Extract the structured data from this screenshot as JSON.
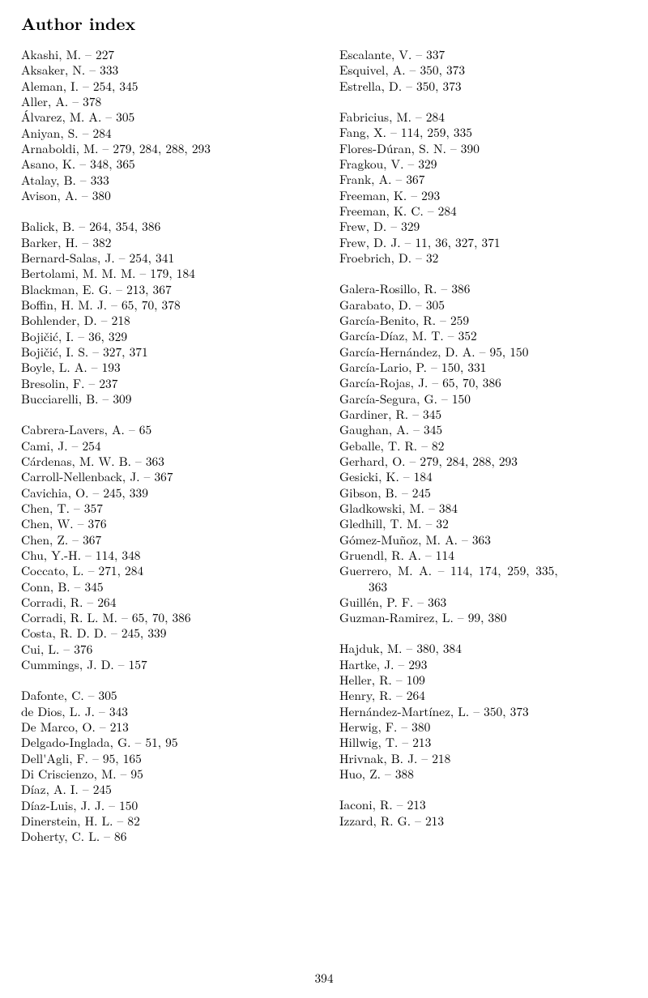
{
  "title": "Author index",
  "page_number": "394",
  "left_column": [
    {
      "type": "entry",
      "text": "Akashi, M. – 227"
    },
    {
      "type": "entry",
      "text": "Aksaker, N. – 333"
    },
    {
      "type": "entry",
      "text": "Aleman, I. – 254, 345"
    },
    {
      "type": "entry",
      "text": "Aller, A. – 378"
    },
    {
      "type": "entry",
      "text": "Álvarez, M. A. – 305"
    },
    {
      "type": "entry",
      "text": "Aniyan, S. – 284"
    },
    {
      "type": "entry",
      "text": "Arnaboldi, M. – 279, 284, 288, 293"
    },
    {
      "type": "entry",
      "text": "Asano, K. – 348, 365"
    },
    {
      "type": "entry",
      "text": "Atalay, B. – 333"
    },
    {
      "type": "entry",
      "text": "Avison, A. – 380"
    },
    {
      "type": "gap"
    },
    {
      "type": "entry",
      "text": "Balick, B. – 264, 354, 386"
    },
    {
      "type": "entry",
      "text": "Barker, H. – 382"
    },
    {
      "type": "entry",
      "text": "Bernard-Salas, J. – 254, 341"
    },
    {
      "type": "entry",
      "text": "Bertolami, M. M. M. – 179, 184"
    },
    {
      "type": "entry",
      "text": "Blackman, E. G. – 213, 367"
    },
    {
      "type": "entry",
      "text": "Boffin, H. M. J. – 65, 70, 378"
    },
    {
      "type": "entry",
      "text": "Bohlender, D. – 218"
    },
    {
      "type": "entry",
      "text": "Bojičić, I. – 36, 329"
    },
    {
      "type": "entry",
      "text": "Bojičić, I. S. – 327, 371"
    },
    {
      "type": "entry",
      "text": "Boyle, L. A. – 193"
    },
    {
      "type": "entry",
      "text": "Bresolin, F. – 237"
    },
    {
      "type": "entry",
      "text": "Bucciarelli, B. – 309"
    },
    {
      "type": "gap"
    },
    {
      "type": "entry",
      "text": "Cabrera-Lavers, A. – 65"
    },
    {
      "type": "entry",
      "text": "Cami, J. – 254"
    },
    {
      "type": "entry",
      "text": "Cárdenas, M. W. B. – 363"
    },
    {
      "type": "entry",
      "text": "Carroll-Nellenback, J. – 367"
    },
    {
      "type": "entry",
      "text": "Cavichia, O. – 245, 339"
    },
    {
      "type": "entry",
      "text": "Chen, T. – 357"
    },
    {
      "type": "entry",
      "text": "Chen, W. – 376"
    },
    {
      "type": "entry",
      "text": "Chen, Z. – 367"
    },
    {
      "type": "entry",
      "text": "Chu, Y.-H. – 114, 348"
    },
    {
      "type": "entry",
      "text": "Coccato, L. – 271, 284"
    },
    {
      "type": "entry",
      "text": "Conn, B. – 345"
    },
    {
      "type": "entry",
      "text": "Corradi, R. – 264"
    },
    {
      "type": "entry",
      "text": "Corradi, R. L. M. – 65, 70, 386"
    },
    {
      "type": "entry",
      "text": "Costa, R. D. D. – 245, 339"
    },
    {
      "type": "entry",
      "text": "Cui, L. – 376"
    },
    {
      "type": "entry",
      "text": "Cummings, J. D. – 157"
    },
    {
      "type": "gap"
    },
    {
      "type": "entry",
      "text": "Dafonte, C. – 305"
    },
    {
      "type": "entry",
      "text": "de Dios, L. J. – 343"
    },
    {
      "type": "entry",
      "text": "De Marco, O. – 213"
    },
    {
      "type": "entry",
      "text": "Delgado-Inglada, G. – 51, 95"
    },
    {
      "type": "entry",
      "text": "Dell'Agli, F. – 95, 165"
    },
    {
      "type": "entry",
      "text": "Di Criscienzo, M. – 95"
    },
    {
      "type": "entry",
      "text": "Díaz, A. I. – 245"
    },
    {
      "type": "entry",
      "text": "Díaz-Luis, J. J. – 150"
    },
    {
      "type": "entry",
      "text": "Dinerstein, H. L. – 82"
    },
    {
      "type": "entry",
      "text": "Doherty, C. L. – 86"
    }
  ],
  "right_column": [
    {
      "type": "entry",
      "text": "Escalante, V. – 337"
    },
    {
      "type": "entry",
      "text": "Esquivel, A. – 350, 373"
    },
    {
      "type": "entry",
      "text": "Estrella, D. – 350, 373"
    },
    {
      "type": "gap"
    },
    {
      "type": "entry",
      "text": "Fabricius, M. – 284"
    },
    {
      "type": "entry",
      "text": "Fang, X. – 114, 259, 335"
    },
    {
      "type": "entry",
      "text": "Flores-Dúran, S. N. – 390"
    },
    {
      "type": "entry",
      "text": "Fragkou, V. – 329"
    },
    {
      "type": "entry",
      "text": "Frank, A. – 367"
    },
    {
      "type": "entry",
      "text": "Freeman, K. – 293"
    },
    {
      "type": "entry",
      "text": "Freeman, K. C. – 284"
    },
    {
      "type": "entry",
      "text": "Frew, D. – 329"
    },
    {
      "type": "entry",
      "text": "Frew, D. J. – 11, 36, 327, 371"
    },
    {
      "type": "entry",
      "text": "Froebrich, D. – 32"
    },
    {
      "type": "gap"
    },
    {
      "type": "entry",
      "text": "Galera-Rosillo, R. – 386"
    },
    {
      "type": "entry",
      "text": "Garabato, D. – 305"
    },
    {
      "type": "entry",
      "text": "García-Benito, R. – 259"
    },
    {
      "type": "entry",
      "text": "García-Díaz, M. T. – 352"
    },
    {
      "type": "entry",
      "text": "García-Hernández, D. A. – 95, 150"
    },
    {
      "type": "entry",
      "text": "García-Lario, P. – 150, 331"
    },
    {
      "type": "entry",
      "text": "García-Rojas, J. – 65, 70, 386"
    },
    {
      "type": "entry",
      "text": "García-Segura, G. – 150"
    },
    {
      "type": "entry",
      "text": "Gardiner, R. – 345"
    },
    {
      "type": "entry",
      "text": "Gaughan, A. – 345"
    },
    {
      "type": "entry",
      "text": "Geballe, T. R. – 82"
    },
    {
      "type": "entry",
      "text": "Gerhard, O. – 279, 284, 288, 293"
    },
    {
      "type": "entry",
      "text": "Gesicki, K. – 184"
    },
    {
      "type": "entry",
      "text": "Gibson, B. – 245"
    },
    {
      "type": "entry",
      "text": "Gladkowski, M. – 384"
    },
    {
      "type": "entry",
      "text": "Gledhill, T. M. – 32"
    },
    {
      "type": "entry",
      "text": "Gómez-Muñoz, M. A. – 363"
    },
    {
      "type": "entry",
      "text": "Gruendl, R. A. – 114"
    },
    {
      "type": "entry",
      "text": "Guerrero, M. A. – 114, 174, 259, 335,"
    },
    {
      "type": "wrap",
      "text": "363"
    },
    {
      "type": "entry",
      "text": "Guillén, P. F. – 363"
    },
    {
      "type": "entry",
      "text": "Guzman-Ramirez, L. – 99, 380"
    },
    {
      "type": "gap"
    },
    {
      "type": "entry",
      "text": "Hajduk, M. – 380, 384"
    },
    {
      "type": "entry",
      "text": "Hartke, J. – 293"
    },
    {
      "type": "entry",
      "text": "Heller, R. – 109"
    },
    {
      "type": "entry",
      "text": "Henry, R. – 264"
    },
    {
      "type": "entry",
      "text": "Hernández-Martínez, L. – 350, 373"
    },
    {
      "type": "entry",
      "text": "Herwig, F. – 380"
    },
    {
      "type": "entry",
      "text": "Hillwig, T. – 213"
    },
    {
      "type": "entry",
      "text": "Hrivnak, B. J. – 218"
    },
    {
      "type": "entry",
      "text": "Huo, Z. – 388"
    },
    {
      "type": "gap"
    },
    {
      "type": "entry",
      "text": "Iaconi, R. – 213"
    },
    {
      "type": "entry",
      "text": "Izzard, R. G. – 213"
    }
  ]
}
